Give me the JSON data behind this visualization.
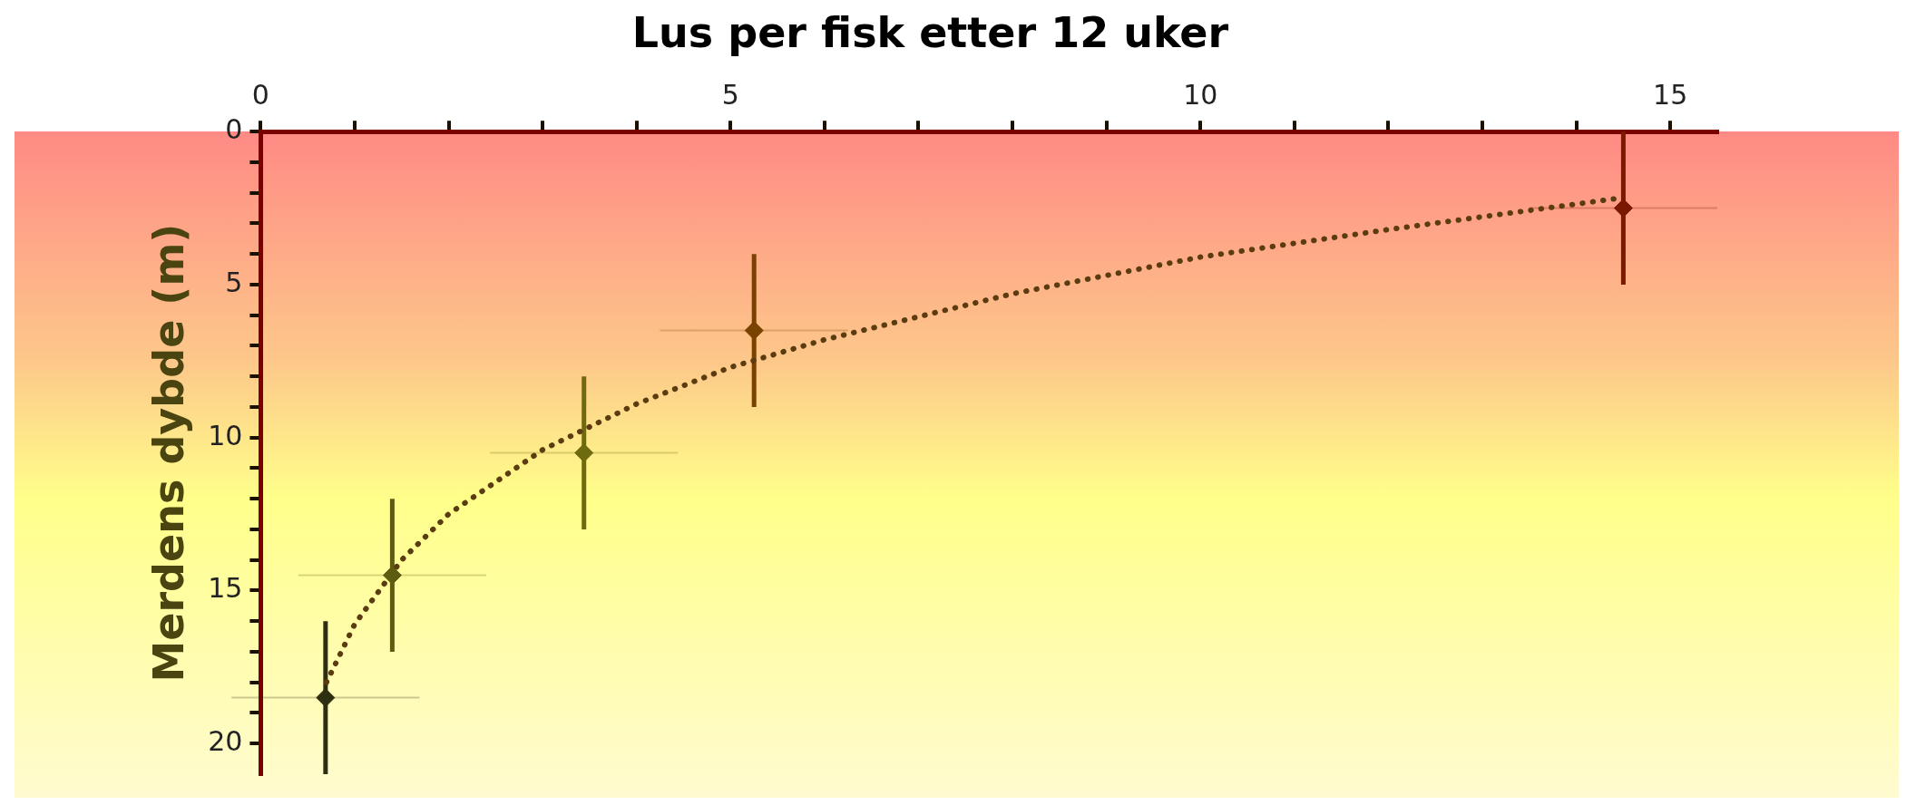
{
  "chart_data": {
    "type": "scatter",
    "title": "Lus per fisk etter 12 uker",
    "ylabel": "Merdens dybde (m)",
    "marker": "diamond",
    "xlim": [
      0,
      15.5
    ],
    "ylim": [
      21,
      0
    ],
    "xticks": [
      0,
      {
        "value": 1,
        "label": null
      },
      {
        "value": 2,
        "label": null
      },
      {
        "value": 3,
        "label": null
      },
      {
        "value": 4,
        "label": null
      },
      5,
      {
        "value": 6,
        "label": null
      },
      {
        "value": 7,
        "label": null
      },
      {
        "value": 8,
        "label": null
      },
      {
        "value": 9,
        "label": null
      },
      10,
      {
        "value": 11,
        "label": null
      },
      {
        "value": 12,
        "label": null
      },
      {
        "value": 13,
        "label": null
      },
      {
        "value": 14,
        "label": null
      },
      15
    ],
    "yticks": [
      0,
      {
        "value": 1,
        "label": null
      },
      {
        "value": 2,
        "label": null
      },
      {
        "value": 3,
        "label": null
      },
      {
        "value": 4,
        "label": null
      },
      5,
      {
        "value": 6,
        "label": null
      },
      {
        "value": 7,
        "label": null
      },
      {
        "value": 8,
        "label": null
      },
      {
        "value": 9,
        "label": null
      },
      10,
      {
        "value": 11,
        "label": null
      },
      {
        "value": 12,
        "label": null
      },
      {
        "value": 13,
        "label": null
      },
      {
        "value": 14,
        "label": null
      },
      15,
      {
        "value": 16,
        "label": null
      },
      {
        "value": 17,
        "label": null
      },
      {
        "value": 18,
        "label": null
      },
      {
        "value": 19,
        "label": null
      },
      20
    ],
    "series": [
      {
        "x": [
          14.5,
          5.25,
          3.44,
          1.4,
          0.69
        ],
        "values": [
          2.5,
          6.5,
          10.5,
          14.5,
          18.5
        ],
        "colors": [
          "#7a1800",
          "#7a4200",
          "#6e6a10",
          "#5e5c10",
          "#2e2e10"
        ],
        "errors": [
          2.5,
          2.5,
          2.5,
          2.5,
          2.5
        ],
        "xerrors": [
          1,
          1,
          1,
          1,
          1
        ]
      },
      {
        "type": "line",
        "color": "#5a3c10",
        "line_style": "dotted",
        "marker": "none",
        "x": [
          0.7,
          1,
          1.5,
          2,
          3,
          4,
          5,
          6,
          8,
          10,
          12,
          14.4
        ],
        "values": [
          18.0,
          16.1,
          14.0,
          12.5,
          10.4,
          8.9,
          7.7,
          6.8,
          5.3,
          4.1,
          3.2,
          2.2
        ]
      }
    ]
  }
}
